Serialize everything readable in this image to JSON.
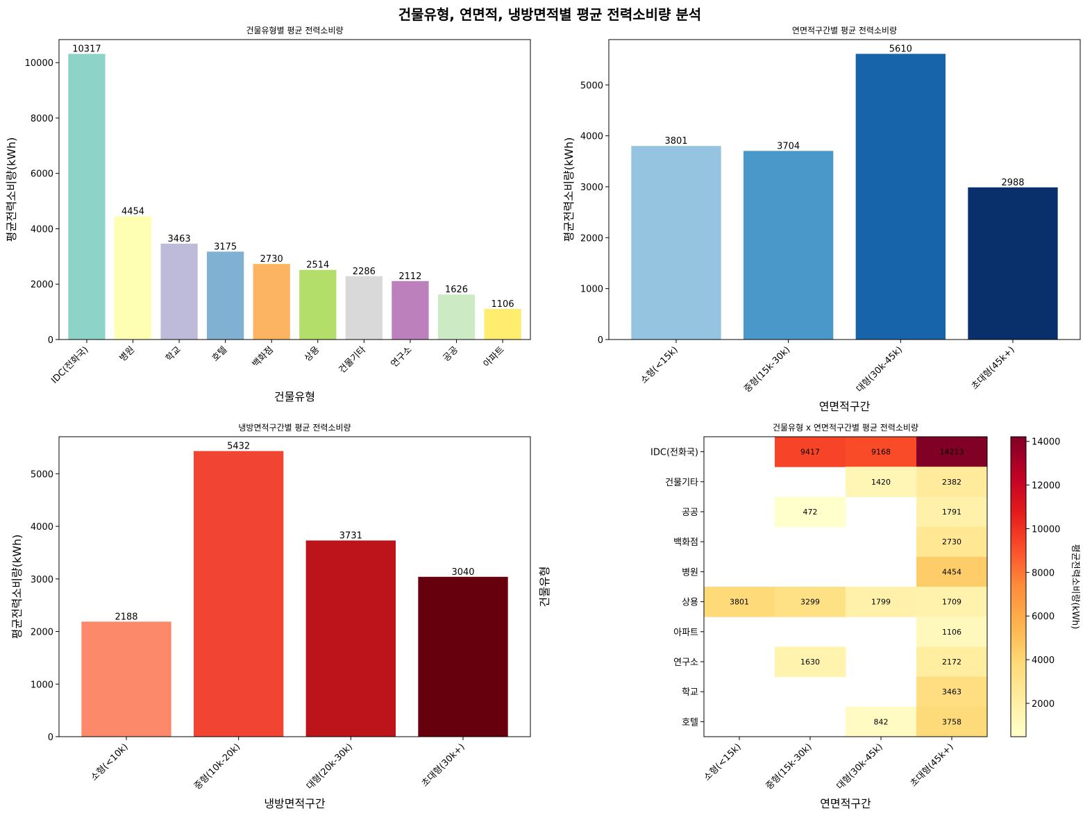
{
  "figure": {
    "suptitle": "건물유형, 연면적, 냉방면적별 평균 전력소비량 분석"
  },
  "chart_data": [
    {
      "type": "bar",
      "title": "건물유형별 평균 전력소비량",
      "xlabel": "건물유형",
      "ylabel": "평균전력소비량(kWh)",
      "categories": [
        "IDC(전화국)",
        "병원",
        "학교",
        "호텔",
        "백화점",
        "상용",
        "건물기타",
        "연구소",
        "공공",
        "아파트"
      ],
      "values": [
        10317,
        4454,
        3463,
        3175,
        2730,
        2514,
        2286,
        2112,
        1626,
        1106
      ],
      "colors": [
        "#8dd3c7",
        "#ffffb3",
        "#bebada",
        "#80b1d3",
        "#fdb462",
        "#b3de69",
        "#d9d9d9",
        "#bc80bd",
        "#ccebc5",
        "#ffed6f"
      ],
      "yticks": [
        0,
        2000,
        4000,
        6000,
        8000,
        10000
      ],
      "ylim": [
        0,
        10833
      ]
    },
    {
      "type": "bar",
      "title": "연면적구간별 평균 전력소비량",
      "xlabel": "연면적구간",
      "ylabel": "평균전력소비량(kWh)",
      "categories": [
        "소형(<15k)",
        "중형(15k-30k)",
        "대형(30k-45k)",
        "초대형(45k+)"
      ],
      "values": [
        3801,
        3704,
        5610,
        2988
      ],
      "colors": [
        "#95c4e0",
        "#4a98c9",
        "#1764ab",
        "#0a306b"
      ],
      "yticks": [
        0,
        1000,
        2000,
        3000,
        4000,
        5000
      ],
      "ylim": [
        0,
        5890
      ]
    },
    {
      "type": "bar",
      "title": "냉방면적구간별 평균 전력소비량",
      "xlabel": "냉방면적구간",
      "ylabel": "평균전력소비량(kWh)",
      "categories": [
        "소형(<10k)",
        "중형(10k-20k)",
        "대형(20k-30k)",
        "초대형(30k+)"
      ],
      "values": [
        2188,
        5432,
        3731,
        3040
      ],
      "colors": [
        "#fc8a6a",
        "#f14432",
        "#bc141a",
        "#67000d"
      ],
      "yticks": [
        0,
        1000,
        2000,
        3000,
        4000,
        5000
      ],
      "ylim": [
        0,
        5704
      ]
    },
    {
      "type": "heatmap",
      "title": "건물유형 x 연면적구간별 평균 전력소비량",
      "xlabel": "연면적구간",
      "ylabel": "건물유형",
      "x": [
        "소형(<15k)",
        "중형(15k-30k)",
        "대형(30k-45k)",
        "초대형(45k+)"
      ],
      "y": [
        "IDC(전화국)",
        "건물기타",
        "공공",
        "백화점",
        "병원",
        "상용",
        "아파트",
        "연구소",
        "학교",
        "호텔"
      ],
      "values": [
        [
          null,
          9417,
          9168,
          14213
        ],
        [
          null,
          null,
          1420,
          2382
        ],
        [
          null,
          472,
          null,
          1791
        ],
        [
          null,
          null,
          null,
          2730
        ],
        [
          null,
          null,
          null,
          4454
        ],
        [
          3801,
          3299,
          1799,
          1709
        ],
        [
          null,
          null,
          null,
          1106
        ],
        [
          null,
          1630,
          null,
          2172
        ],
        [
          null,
          null,
          null,
          3463
        ],
        [
          null,
          null,
          842,
          3758
        ]
      ],
      "colormap": "YlOrRd",
      "vmin": 472,
      "vmax": 14213,
      "colorbar_label": "평균전력소비량(kWh)",
      "colorbar_ticks": [
        2000,
        4000,
        6000,
        8000,
        10000,
        12000,
        14000
      ]
    }
  ]
}
